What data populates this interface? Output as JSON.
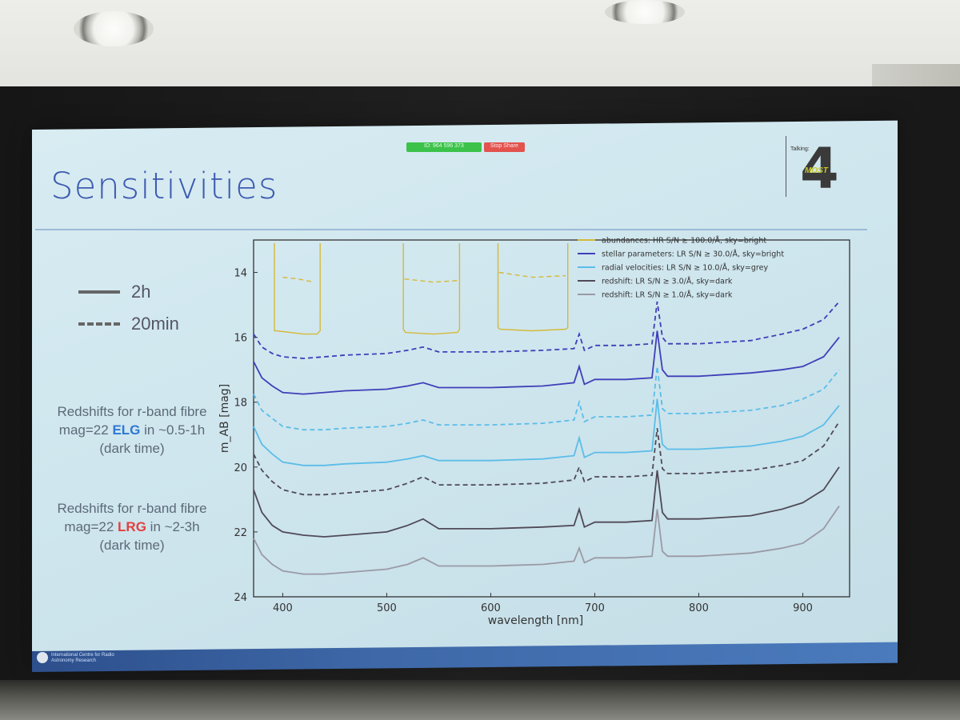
{
  "zoom_bar": {
    "meeting_id": "ID: 964 596 373",
    "stop_label": "Stop Share"
  },
  "slide": {
    "title": "Sensitivities",
    "logo_label": "Talking:",
    "logo_digit": "4",
    "logo_brand": "MOST",
    "line_legend": [
      {
        "label": "2h",
        "style": "solid"
      },
      {
        "label": "20min",
        "style": "dashed"
      }
    ],
    "notes": [
      {
        "pre": "Redshifts for r-band fibre mag=22 ",
        "highlight": "ELG",
        "post": " in ~0.5-1h (dark time)"
      },
      {
        "pre": "Redshifts for r-band fibre mag=22 ",
        "highlight": "LRG",
        "post": " in ~2-3h (dark time)"
      }
    ],
    "footer": "International Centre for Radio Astronomy Research"
  },
  "colors": {
    "abundances": "#d4b93a",
    "stellar": "#3f3fb8",
    "radial": "#5bbde8",
    "redshift3": "#4f4a58",
    "redshift1": "#9a9aa6",
    "elg": "#2f78d4",
    "lrg": "#e24040"
  },
  "chart_data": {
    "type": "line",
    "xlabel": "wavelength [nm]",
    "ylabel": "m_AB [mag]",
    "xlim": [
      372,
      945
    ],
    "ylim": [
      24,
      13
    ],
    "y_inverted": true,
    "xticks": [
      400,
      500,
      600,
      700,
      800,
      900
    ],
    "yticks": [
      14,
      16,
      18,
      20,
      22,
      24
    ],
    "legend_position": "top-right",
    "series": [
      {
        "name": "abundances: HR S/N ≥ 100.0/Å, sky=bright",
        "color_key": "abundances",
        "linestyle": "solid",
        "segments": [
          {
            "x": [
              392,
              394,
              420,
              433,
              436
            ],
            "y": [
              15.8,
              15.8,
              15.9,
              15.9,
              15.8
            ]
          },
          {
            "x": [
              516,
              518,
              545,
              568,
              570
            ],
            "y": [
              15.75,
              15.85,
              15.9,
              15.85,
              15.75
            ]
          },
          {
            "x": [
              607,
              609,
              640,
              672,
              674
            ],
            "y": [
              15.7,
              15.75,
              15.8,
              15.75,
              15.7
            ]
          }
        ]
      },
      {
        "name": "abundances 20min",
        "color_key": "abundances",
        "linestyle": "dashed",
        "segments": [
          {
            "x": [
              400,
              415,
              430
            ],
            "y": [
              14.15,
              14.2,
              14.3
            ]
          },
          {
            "x": [
              517,
              545,
              568
            ],
            "y": [
              14.2,
              14.3,
              14.25
            ]
          },
          {
            "x": [
              608,
              640,
              672
            ],
            "y": [
              14.0,
              14.15,
              14.1
            ]
          }
        ]
      },
      {
        "name": "stellar parameters: LR S/N ≥ 30.0/Å, sky=bright",
        "color_key": "stellar",
        "linestyle": "solid",
        "x": [
          372,
          380,
          390,
          400,
          420,
          440,
          460,
          500,
          520,
          535,
          550,
          600,
          650,
          680,
          685,
          690,
          700,
          730,
          755,
          760,
          765,
          770,
          800,
          850,
          880,
          900,
          920,
          935
        ],
        "y": [
          16.75,
          17.25,
          17.5,
          17.7,
          17.75,
          17.7,
          17.65,
          17.6,
          17.5,
          17.4,
          17.55,
          17.55,
          17.5,
          17.4,
          16.9,
          17.45,
          17.3,
          17.3,
          17.25,
          15.8,
          17.0,
          17.2,
          17.2,
          17.1,
          17.0,
          16.9,
          16.6,
          16.0
        ]
      },
      {
        "name": "stellar parameters 20min",
        "color_key": "stellar",
        "linestyle": "dashed",
        "x": [
          372,
          380,
          390,
          400,
          420,
          440,
          460,
          500,
          520,
          535,
          550,
          600,
          650,
          680,
          685,
          690,
          700,
          730,
          755,
          760,
          765,
          770,
          800,
          850,
          880,
          900,
          920,
          935
        ],
        "y": [
          15.9,
          16.3,
          16.5,
          16.6,
          16.65,
          16.6,
          16.55,
          16.5,
          16.4,
          16.3,
          16.45,
          16.45,
          16.4,
          16.35,
          15.9,
          16.4,
          16.25,
          16.25,
          16.2,
          14.9,
          16.0,
          16.2,
          16.2,
          16.1,
          15.9,
          15.75,
          15.45,
          14.9
        ]
      },
      {
        "name": "radial velocities: LR S/N ≥ 10.0/Å, sky=grey",
        "color_key": "radial",
        "linestyle": "solid",
        "x": [
          372,
          380,
          390,
          400,
          420,
          440,
          460,
          500,
          520,
          535,
          550,
          600,
          650,
          680,
          685,
          690,
          700,
          730,
          755,
          760,
          765,
          770,
          800,
          850,
          880,
          900,
          920,
          935
        ],
        "y": [
          18.75,
          19.3,
          19.6,
          19.85,
          19.95,
          19.95,
          19.9,
          19.85,
          19.75,
          19.65,
          19.8,
          19.8,
          19.75,
          19.65,
          19.1,
          19.7,
          19.55,
          19.55,
          19.5,
          17.9,
          19.3,
          19.45,
          19.45,
          19.35,
          19.2,
          19.05,
          18.7,
          18.1
        ]
      },
      {
        "name": "radial velocities 20min",
        "color_key": "radial",
        "linestyle": "dashed",
        "x": [
          372,
          380,
          390,
          400,
          420,
          440,
          460,
          500,
          520,
          535,
          550,
          600,
          650,
          680,
          685,
          690,
          700,
          730,
          755,
          760,
          765,
          770,
          800,
          850,
          880,
          900,
          920,
          935
        ],
        "y": [
          17.75,
          18.25,
          18.5,
          18.75,
          18.85,
          18.85,
          18.8,
          18.75,
          18.65,
          18.55,
          18.7,
          18.7,
          18.65,
          18.55,
          18.0,
          18.6,
          18.45,
          18.45,
          18.4,
          16.9,
          18.2,
          18.35,
          18.35,
          18.25,
          18.1,
          17.9,
          17.6,
          17.0
        ]
      },
      {
        "name": "redshift: LR S/N ≥ 3.0/Å, sky=dark",
        "color_key": "redshift3",
        "linestyle": "solid",
        "x": [
          372,
          380,
          390,
          400,
          420,
          440,
          460,
          500,
          520,
          535,
          550,
          600,
          650,
          680,
          685,
          690,
          700,
          730,
          755,
          760,
          765,
          770,
          800,
          850,
          880,
          900,
          920,
          935
        ],
        "y": [
          20.7,
          21.4,
          21.8,
          22.0,
          22.1,
          22.15,
          22.1,
          22.0,
          21.8,
          21.6,
          21.9,
          21.9,
          21.85,
          21.8,
          21.3,
          21.85,
          21.7,
          21.7,
          21.65,
          20.1,
          21.4,
          21.6,
          21.6,
          21.5,
          21.3,
          21.1,
          20.7,
          20.0
        ]
      },
      {
        "name": "redshift 20min",
        "color_key": "redshift3",
        "linestyle": "dashed",
        "x": [
          372,
          380,
          390,
          400,
          420,
          440,
          460,
          500,
          520,
          535,
          550,
          600,
          650,
          680,
          685,
          690,
          700,
          730,
          755,
          760,
          765,
          770,
          800,
          850,
          880,
          900,
          920,
          935
        ],
        "y": [
          19.6,
          20.1,
          20.45,
          20.7,
          20.85,
          20.85,
          20.8,
          20.7,
          20.5,
          20.3,
          20.55,
          20.55,
          20.5,
          20.4,
          20.0,
          20.45,
          20.3,
          20.3,
          20.25,
          18.8,
          20.05,
          20.2,
          20.2,
          20.1,
          19.95,
          19.8,
          19.35,
          18.6
        ]
      },
      {
        "name": "redshift: LR S/N ≥ 1.0/Å, sky=dark",
        "color_key": "redshift1",
        "linestyle": "solid",
        "x": [
          372,
          380,
          390,
          400,
          420,
          440,
          460,
          500,
          520,
          535,
          550,
          600,
          650,
          680,
          685,
          690,
          700,
          730,
          755,
          760,
          765,
          770,
          800,
          850,
          880,
          900,
          920,
          935
        ],
        "y": [
          22.2,
          22.7,
          23.0,
          23.2,
          23.3,
          23.3,
          23.25,
          23.15,
          23.0,
          22.8,
          23.05,
          23.05,
          23.0,
          22.9,
          22.5,
          22.95,
          22.8,
          22.8,
          22.75,
          21.3,
          22.6,
          22.75,
          22.75,
          22.65,
          22.5,
          22.35,
          21.9,
          21.2
        ]
      }
    ],
    "legend_order": [
      0,
      2,
      4,
      6,
      8
    ]
  }
}
